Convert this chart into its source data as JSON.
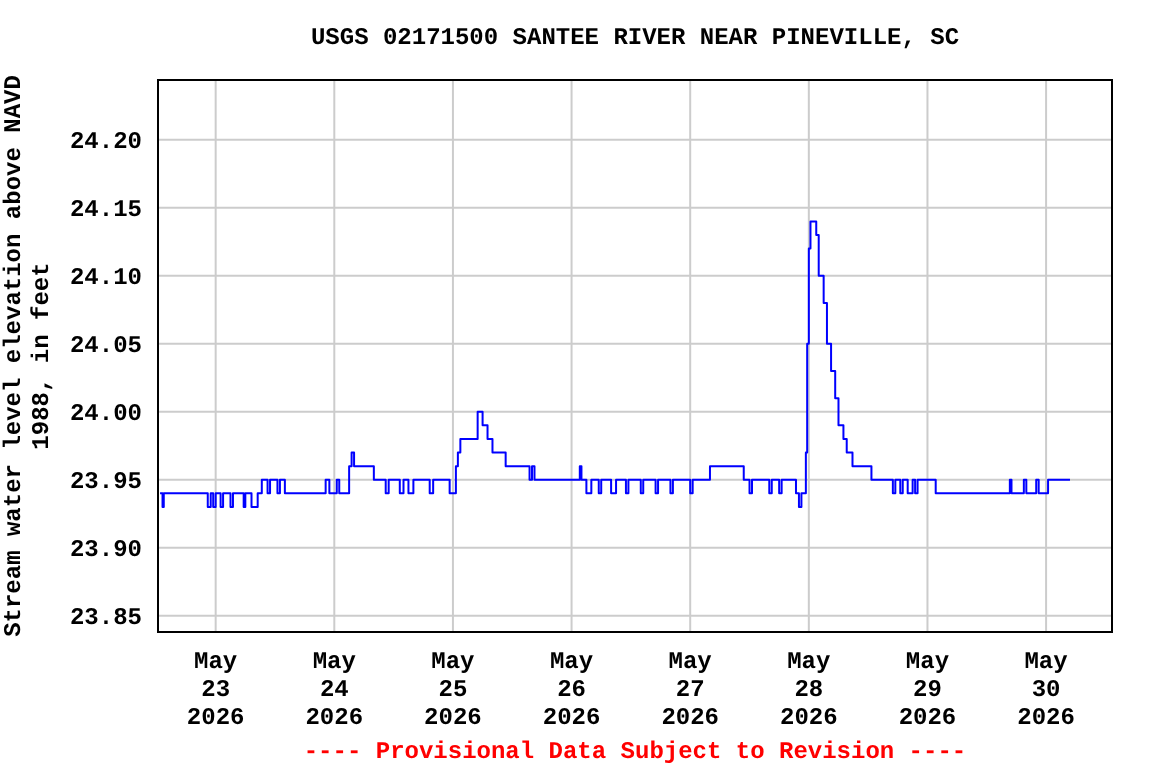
{
  "chart_data": {
    "type": "step",
    "title": "USGS 02171500 SANTEE RIVER NEAR PINEVILLE, SC",
    "ylabel": "Stream water level elevation above NAVD\n1988, in feet",
    "annotations": [
      "---- Provisional Data Subject to Revision ----"
    ],
    "grid": true,
    "xlim": [
      "2026-05-22T12:20",
      "2026-05-30T13:20"
    ],
    "ylim": [
      23.838,
      24.244
    ],
    "xticks": [
      {
        "value": "2026-05-23",
        "label": "May\n23\n2026"
      },
      {
        "value": "2026-05-24",
        "label": "May\n24\n2026"
      },
      {
        "value": "2026-05-25",
        "label": "May\n25\n2026"
      },
      {
        "value": "2026-05-26",
        "label": "May\n26\n2026"
      },
      {
        "value": "2026-05-27",
        "label": "May\n27\n2026"
      },
      {
        "value": "2026-05-28",
        "label": "May\n28\n2026"
      },
      {
        "value": "2026-05-29",
        "label": "May\n29\n2026"
      },
      {
        "value": "2026-05-30",
        "label": "May\n30\n2026"
      }
    ],
    "yticks": [
      {
        "value": 23.85,
        "label": "23.85"
      },
      {
        "value": 23.9,
        "label": "23.90"
      },
      {
        "value": 23.95,
        "label": "23.95"
      },
      {
        "value": 24.0,
        "label": "24.00"
      },
      {
        "value": 24.05,
        "label": "24.05"
      },
      {
        "value": 24.1,
        "label": "24.10"
      },
      {
        "value": 24.15,
        "label": "24.15"
      },
      {
        "value": 24.2,
        "label": "24.20"
      }
    ],
    "series": [
      {
        "color": "#0000ff",
        "x": [
          "2026-05-22T12:45",
          "2026-05-22T13:15",
          "2026-05-22T13:30",
          "2026-05-22T22:24",
          "2026-05-22T23:00",
          "2026-05-22T23:30",
          "2026-05-23T00:00",
          "2026-05-23T01:00",
          "2026-05-23T01:30",
          "2026-05-23T03:00",
          "2026-05-23T03:30",
          "2026-05-23T05:40",
          "2026-05-23T06:00",
          "2026-05-23T07:15",
          "2026-05-23T08:30",
          "2026-05-23T09:20",
          "2026-05-23T10:30",
          "2026-05-23T11:00",
          "2026-05-23T12:30",
          "2026-05-23T13:00",
          "2026-05-23T14:00",
          "2026-05-23T22:15",
          "2026-05-23T23:00",
          "2026-05-24T00:30",
          "2026-05-24T01:00",
          "2026-05-24T03:00",
          "2026-05-24T03:30",
          "2026-05-24T04:00",
          "2026-05-24T08:00",
          "2026-05-24T10:24",
          "2026-05-24T11:00",
          "2026-05-24T13:15",
          "2026-05-24T14:00",
          "2026-05-24T15:00",
          "2026-05-24T16:00",
          "2026-05-24T19:18",
          "2026-05-24T20:00",
          "2026-05-24T23:20",
          "2026-05-25T00:36",
          "2026-05-25T01:00",
          "2026-05-25T01:30",
          "2026-05-25T05:00",
          "2026-05-25T06:00",
          "2026-05-25T07:00",
          "2026-05-25T08:00",
          "2026-05-25T10:40",
          "2026-05-25T15:30",
          "2026-05-25T16:00",
          "2026-05-25T16:30",
          "2026-05-26T01:40",
          "2026-05-26T02:00",
          "2026-05-26T03:00",
          "2026-05-26T04:00",
          "2026-05-26T05:30",
          "2026-05-26T06:00",
          "2026-05-26T08:00",
          "2026-05-26T09:00",
          "2026-05-26T11:00",
          "2026-05-26T11:30",
          "2026-05-26T14:00",
          "2026-05-26T14:30",
          "2026-05-26T17:00",
          "2026-05-26T17:30",
          "2026-05-26T20:00",
          "2026-05-26T20:30",
          "2026-05-27T00:00",
          "2026-05-27T00:30",
          "2026-05-27T04:00",
          "2026-05-27T10:50",
          "2026-05-27T12:00",
          "2026-05-27T12:30",
          "2026-05-27T16:00",
          "2026-05-27T16:30",
          "2026-05-27T18:00",
          "2026-05-27T18:30",
          "2026-05-27T21:24",
          "2026-05-27T22:00",
          "2026-05-27T22:30",
          "2026-05-27T23:24",
          "2026-05-27T23:40",
          "2026-05-28T00:00",
          "2026-05-28T00:20",
          "2026-05-28T01:30",
          "2026-05-28T02:00",
          "2026-05-28T03:00",
          "2026-05-28T03:40",
          "2026-05-28T04:30",
          "2026-05-28T05:20",
          "2026-05-28T06:00",
          "2026-05-28T07:00",
          "2026-05-28T07:40",
          "2026-05-28T08:50",
          "2026-05-28T12:40",
          "2026-05-28T17:00",
          "2026-05-28T17:30",
          "2026-05-28T18:30",
          "2026-05-28T19:00",
          "2026-05-28T20:00",
          "2026-05-28T21:00",
          "2026-05-28T21:30",
          "2026-05-28T22:00",
          "2026-05-29T01:40",
          "2026-05-29T16:40",
          "2026-05-29T17:00",
          "2026-05-29T19:30",
          "2026-05-29T20:00",
          "2026-05-29T22:00",
          "2026-05-29T22:30",
          "2026-05-30T00:24",
          "2026-05-30T04:50"
        ],
        "values": [
          23.94,
          23.93,
          23.94,
          23.93,
          23.94,
          23.93,
          23.94,
          23.93,
          23.94,
          23.93,
          23.94,
          23.93,
          23.94,
          23.93,
          23.94,
          23.95,
          23.94,
          23.95,
          23.94,
          23.95,
          23.94,
          23.95,
          23.94,
          23.95,
          23.94,
          23.96,
          23.97,
          23.96,
          23.95,
          23.94,
          23.95,
          23.94,
          23.95,
          23.94,
          23.95,
          23.94,
          23.95,
          23.94,
          23.96,
          23.97,
          23.98,
          24.0,
          23.99,
          23.98,
          23.97,
          23.96,
          23.95,
          23.96,
          23.95,
          23.96,
          23.95,
          23.94,
          23.95,
          23.94,
          23.95,
          23.94,
          23.95,
          23.94,
          23.95,
          23.94,
          23.95,
          23.94,
          23.95,
          23.94,
          23.95,
          23.94,
          23.95,
          23.96,
          23.95,
          23.94,
          23.95,
          23.94,
          23.95,
          23.94,
          23.95,
          23.94,
          23.93,
          23.94,
          23.97,
          24.05,
          24.12,
          24.14,
          24.13,
          24.1,
          24.08,
          24.05,
          24.03,
          24.01,
          23.99,
          23.98,
          23.97,
          23.96,
          23.95,
          23.94,
          23.95,
          23.94,
          23.95,
          23.94,
          23.95,
          23.94,
          23.95,
          23.94,
          23.95,
          23.94,
          23.95,
          23.94,
          23.95,
          23.94,
          23.95,
          23.95
        ]
      }
    ]
  }
}
